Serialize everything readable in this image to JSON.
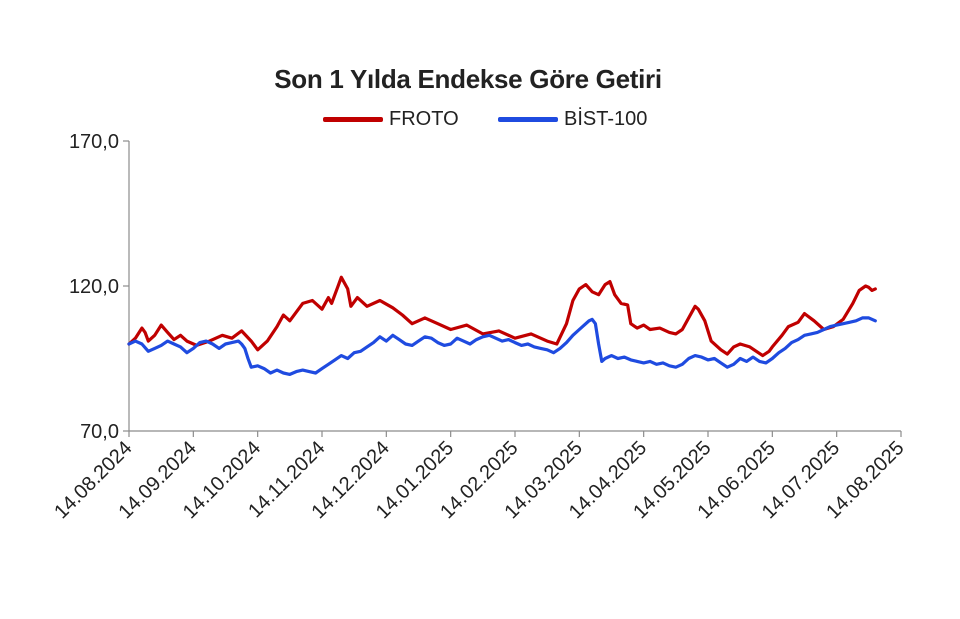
{
  "chart_data": {
    "type": "line",
    "title": "Son 1 Yılda Endekse Göre Getiri",
    "ylim": [
      70,
      170
    ],
    "yticks": [
      "70,0",
      "120,0",
      "170,0"
    ],
    "x_tick_labels": [
      "14.08.2024",
      "14.09.2024",
      "14.10.2024",
      "14.11.2024",
      "14.12.2024",
      "14.01.2025",
      "14.02.2025",
      "14.03.2025",
      "14.04.2025",
      "14.05.2025",
      "14.06.2025",
      "14.07.2025",
      "14.08.2025"
    ],
    "grid": false,
    "legend_position": "top-center",
    "series": [
      {
        "name": "FROTO",
        "color": "#c00000",
        "points": [
          [
            0,
            100
          ],
          [
            0.2,
            102
          ],
          [
            0.4,
            105.5
          ],
          [
            0.5,
            104
          ],
          [
            0.6,
            101
          ],
          [
            0.8,
            103
          ],
          [
            1.0,
            106.5
          ],
          [
            1.2,
            104
          ],
          [
            1.4,
            101.5
          ],
          [
            1.6,
            103
          ],
          [
            1.8,
            101
          ],
          [
            2.1,
            99.5
          ],
          [
            2.5,
            101
          ],
          [
            2.9,
            103
          ],
          [
            3.2,
            102
          ],
          [
            3.5,
            104.5
          ],
          [
            3.8,
            101
          ],
          [
            4.0,
            98
          ],
          [
            4.3,
            101
          ],
          [
            4.6,
            106
          ],
          [
            4.8,
            110
          ],
          [
            5.0,
            108
          ],
          [
            5.2,
            111
          ],
          [
            5.4,
            114
          ],
          [
            5.7,
            115
          ],
          [
            6.0,
            112
          ],
          [
            6.2,
            116
          ],
          [
            6.3,
            114
          ],
          [
            6.5,
            120
          ],
          [
            6.6,
            123
          ],
          [
            6.8,
            119
          ],
          [
            6.9,
            113
          ],
          [
            7.1,
            116
          ],
          [
            7.4,
            113
          ],
          [
            7.8,
            115
          ],
          [
            8.2,
            112.5
          ],
          [
            8.5,
            110
          ],
          [
            8.8,
            107
          ],
          [
            9.2,
            109
          ],
          [
            9.6,
            107
          ],
          [
            10.0,
            105
          ],
          [
            10.5,
            106.5
          ],
          [
            11.0,
            103.5
          ],
          [
            11.5,
            104.5
          ],
          [
            12.0,
            102
          ],
          [
            12.5,
            103.5
          ],
          [
            13.0,
            101
          ],
          [
            13.3,
            100
          ],
          [
            13.6,
            107
          ],
          [
            13.8,
            115
          ],
          [
            14.0,
            119
          ],
          [
            14.2,
            120.5
          ],
          [
            14.4,
            118
          ],
          [
            14.6,
            117
          ],
          [
            14.8,
            120.5
          ],
          [
            14.95,
            121.5
          ],
          [
            15.1,
            117
          ],
          [
            15.3,
            114
          ],
          [
            15.5,
            113.5
          ],
          [
            15.6,
            107
          ],
          [
            15.8,
            105.5
          ],
          [
            16.0,
            106.5
          ],
          [
            16.2,
            105
          ],
          [
            16.5,
            105.5
          ],
          [
            16.8,
            104
          ],
          [
            17.0,
            103.5
          ],
          [
            17.2,
            105
          ],
          [
            17.4,
            109
          ],
          [
            17.6,
            113
          ],
          [
            17.7,
            112
          ],
          [
            17.9,
            108
          ],
          [
            18.1,
            101
          ],
          [
            18.4,
            98
          ],
          [
            18.6,
            96.5
          ],
          [
            18.8,
            99
          ],
          [
            19.0,
            100
          ],
          [
            19.3,
            99
          ],
          [
            19.5,
            97.5
          ],
          [
            19.7,
            96
          ],
          [
            19.9,
            97.5
          ],
          [
            20.0,
            99
          ],
          [
            20.3,
            103
          ],
          [
            20.5,
            106
          ],
          [
            20.8,
            107.5
          ],
          [
            21.0,
            110.5
          ],
          [
            21.3,
            108
          ],
          [
            21.6,
            105
          ],
          [
            21.9,
            106
          ],
          [
            22.2,
            108.5
          ],
          [
            22.5,
            114
          ],
          [
            22.7,
            118.5
          ],
          [
            22.9,
            120
          ],
          [
            23.0,
            119.5
          ],
          [
            23.1,
            118.5
          ],
          [
            23.2,
            119
          ]
        ]
      },
      {
        "name": "BİST-100",
        "color": "#1f4be0",
        "points": [
          [
            0,
            100
          ],
          [
            0.2,
            101
          ],
          [
            0.4,
            100
          ],
          [
            0.6,
            97.5
          ],
          [
            0.8,
            98.5
          ],
          [
            1.0,
            99.5
          ],
          [
            1.2,
            101
          ],
          [
            1.4,
            100
          ],
          [
            1.6,
            99
          ],
          [
            1.8,
            97
          ],
          [
            2.0,
            98.5
          ],
          [
            2.2,
            100.5
          ],
          [
            2.4,
            101
          ],
          [
            2.6,
            100
          ],
          [
            2.8,
            98.5
          ],
          [
            3.0,
            100
          ],
          [
            3.2,
            100.5
          ],
          [
            3.4,
            101
          ],
          [
            3.5,
            100
          ],
          [
            3.6,
            98.5
          ],
          [
            3.7,
            95
          ],
          [
            3.8,
            92
          ],
          [
            4.0,
            92.5
          ],
          [
            4.2,
            91.5
          ],
          [
            4.4,
            90
          ],
          [
            4.6,
            91
          ],
          [
            4.8,
            90
          ],
          [
            5.0,
            89.5
          ],
          [
            5.2,
            90.5
          ],
          [
            5.4,
            91
          ],
          [
            5.6,
            90.5
          ],
          [
            5.8,
            90
          ],
          [
            6.0,
            91.5
          ],
          [
            6.2,
            93
          ],
          [
            6.4,
            94.5
          ],
          [
            6.6,
            96
          ],
          [
            6.8,
            95
          ],
          [
            7.0,
            97
          ],
          [
            7.2,
            97.5
          ],
          [
            7.4,
            99
          ],
          [
            7.6,
            100.5
          ],
          [
            7.8,
            102.5
          ],
          [
            8.0,
            101
          ],
          [
            8.2,
            103
          ],
          [
            8.4,
            101.5
          ],
          [
            8.6,
            100
          ],
          [
            8.8,
            99.5
          ],
          [
            9.0,
            101
          ],
          [
            9.2,
            102.5
          ],
          [
            9.4,
            102
          ],
          [
            9.6,
            100.5
          ],
          [
            9.8,
            99.5
          ],
          [
            10.0,
            100
          ],
          [
            10.2,
            102
          ],
          [
            10.4,
            101
          ],
          [
            10.6,
            100
          ],
          [
            10.8,
            101.5
          ],
          [
            11.0,
            102.5
          ],
          [
            11.2,
            103
          ],
          [
            11.4,
            102
          ],
          [
            11.6,
            101
          ],
          [
            11.8,
            101.5
          ],
          [
            12.0,
            100.5
          ],
          [
            12.2,
            99.5
          ],
          [
            12.4,
            100
          ],
          [
            12.6,
            99
          ],
          [
            12.8,
            98.5
          ],
          [
            13.0,
            98
          ],
          [
            13.2,
            97
          ],
          [
            13.4,
            98.5
          ],
          [
            13.6,
            100.5
          ],
          [
            13.8,
            103
          ],
          [
            14.0,
            105
          ],
          [
            14.2,
            107
          ],
          [
            14.3,
            108
          ],
          [
            14.4,
            108.5
          ],
          [
            14.5,
            107
          ],
          [
            14.6,
            100
          ],
          [
            14.7,
            94
          ],
          [
            14.8,
            95
          ],
          [
            15.0,
            96
          ],
          [
            15.2,
            95
          ],
          [
            15.4,
            95.5
          ],
          [
            15.6,
            94.5
          ],
          [
            15.8,
            94
          ],
          [
            16.0,
            93.5
          ],
          [
            16.2,
            94
          ],
          [
            16.4,
            93
          ],
          [
            16.6,
            93.5
          ],
          [
            16.8,
            92.5
          ],
          [
            17.0,
            92
          ],
          [
            17.2,
            93
          ],
          [
            17.4,
            95
          ],
          [
            17.6,
            96
          ],
          [
            17.8,
            95.5
          ],
          [
            18.0,
            94.5
          ],
          [
            18.2,
            95
          ],
          [
            18.4,
            93.5
          ],
          [
            18.6,
            92
          ],
          [
            18.8,
            93
          ],
          [
            19.0,
            95
          ],
          [
            19.2,
            94
          ],
          [
            19.4,
            95.5
          ],
          [
            19.6,
            94
          ],
          [
            19.8,
            93.5
          ],
          [
            20.0,
            95
          ],
          [
            20.2,
            97
          ],
          [
            20.4,
            98.5
          ],
          [
            20.6,
            100.5
          ],
          [
            20.8,
            101.5
          ],
          [
            21.0,
            103
          ],
          [
            21.2,
            103.5
          ],
          [
            21.4,
            104
          ],
          [
            21.6,
            105
          ],
          [
            21.8,
            106
          ],
          [
            22.0,
            106.5
          ],
          [
            22.2,
            107
          ],
          [
            22.4,
            107.5
          ],
          [
            22.6,
            108
          ],
          [
            22.8,
            109
          ],
          [
            23.0,
            109
          ],
          [
            23.2,
            108
          ]
        ]
      }
    ]
  }
}
